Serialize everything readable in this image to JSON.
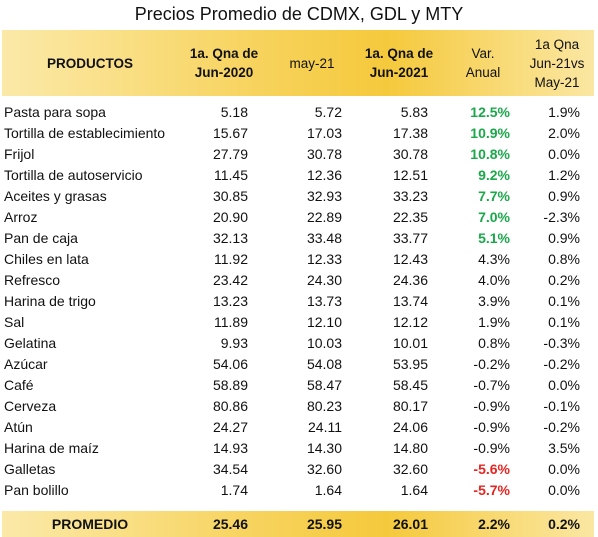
{
  "title": "Precios Promedio de CDMX, GDL y MTY",
  "headers": {
    "productos": "PRODUCTOS",
    "col1_l1": "1a. Qna de",
    "col1_l2": "Jun-2020",
    "col2": "may-21",
    "col3_l1": "1a. Qna de",
    "col3_l2": "Jun-2021",
    "col4_l1": "Var.",
    "col4_l2": "Anual",
    "col5_l1": "1a Qna",
    "col5_l2": "Jun-21vs",
    "col5_l3": "May-21"
  },
  "rows": [
    {
      "name": "Pasta para sopa",
      "jun2020": "5.18",
      "may21": "5.72",
      "jun2021": "5.83",
      "var": "12.5%",
      "vs": "1.9%",
      "tone": "pos"
    },
    {
      "name": "Tortilla de establecimiento",
      "jun2020": "15.67",
      "may21": "17.03",
      "jun2021": "17.38",
      "var": "10.9%",
      "vs": "2.0%",
      "tone": "pos"
    },
    {
      "name": "Frijol",
      "jun2020": "27.79",
      "may21": "30.78",
      "jun2021": "30.78",
      "var": "10.8%",
      "vs": "0.0%",
      "tone": "pos"
    },
    {
      "name": "Tortilla de autoservicio",
      "jun2020": "11.45",
      "may21": "12.36",
      "jun2021": "12.51",
      "var": "9.2%",
      "vs": "1.2%",
      "tone": "pos"
    },
    {
      "name": "Aceites y grasas",
      "jun2020": "30.85",
      "may21": "32.93",
      "jun2021": "33.23",
      "var": "7.7%",
      "vs": "0.9%",
      "tone": "pos"
    },
    {
      "name": "Arroz",
      "jun2020": "20.90",
      "may21": "22.89",
      "jun2021": "22.35",
      "var": "7.0%",
      "vs": "-2.3%",
      "tone": "pos"
    },
    {
      "name": "Pan de caja",
      "jun2020": "32.13",
      "may21": "33.48",
      "jun2021": "33.77",
      "var": "5.1%",
      "vs": "0.9%",
      "tone": "pos"
    },
    {
      "name": "Chiles en lata",
      "jun2020": "11.92",
      "may21": "12.33",
      "jun2021": "12.43",
      "var": "4.3%",
      "vs": "0.8%",
      "tone": ""
    },
    {
      "name": "Refresco",
      "jun2020": "23.42",
      "may21": "24.30",
      "jun2021": "24.36",
      "var": "4.0%",
      "vs": "0.2%",
      "tone": ""
    },
    {
      "name": "Harina de trigo",
      "jun2020": "13.23",
      "may21": "13.73",
      "jun2021": "13.74",
      "var": "3.9%",
      "vs": "0.1%",
      "tone": ""
    },
    {
      "name": "Sal",
      "jun2020": "11.89",
      "may21": "12.10",
      "jun2021": "12.12",
      "var": "1.9%",
      "vs": "0.1%",
      "tone": ""
    },
    {
      "name": "Gelatina",
      "jun2020": "9.93",
      "may21": "10.03",
      "jun2021": "10.01",
      "var": "0.8%",
      "vs": "-0.3%",
      "tone": ""
    },
    {
      "name": "Azúcar",
      "jun2020": "54.06",
      "may21": "54.08",
      "jun2021": "53.95",
      "var": "-0.2%",
      "vs": "-0.2%",
      "tone": ""
    },
    {
      "name": "Café",
      "jun2020": "58.89",
      "may21": "58.47",
      "jun2021": "58.45",
      "var": "-0.7%",
      "vs": "0.0%",
      "tone": ""
    },
    {
      "name": "Cerveza",
      "jun2020": "80.86",
      "may21": "80.23",
      "jun2021": "80.17",
      "var": "-0.9%",
      "vs": "-0.1%",
      "tone": ""
    },
    {
      "name": "Atún",
      "jun2020": "24.27",
      "may21": "24.11",
      "jun2021": "24.06",
      "var": "-0.9%",
      "vs": "-0.2%",
      "tone": ""
    },
    {
      "name": "Harina de maíz",
      "jun2020": "14.93",
      "may21": "14.30",
      "jun2021": "14.80",
      "var": "-0.9%",
      "vs": "3.5%",
      "tone": ""
    },
    {
      "name": "Galletas",
      "jun2020": "34.54",
      "may21": "32.60",
      "jun2021": "32.60",
      "var": "-5.6%",
      "vs": "0.0%",
      "tone": "neg"
    },
    {
      "name": "Pan bolillo",
      "jun2020": "1.74",
      "may21": "1.64",
      "jun2021": "1.64",
      "var": "-5.7%",
      "vs": "0.0%",
      "tone": "neg"
    }
  ],
  "footer": {
    "name": "PROMEDIO",
    "jun2020": "25.46",
    "may21": "25.95",
    "jun2021": "26.01",
    "var": "2.2%",
    "vs": "0.2%"
  },
  "colors": {
    "positive": "#1aa84a",
    "negative": "#e52521",
    "header_gold": "#f7d25a"
  }
}
